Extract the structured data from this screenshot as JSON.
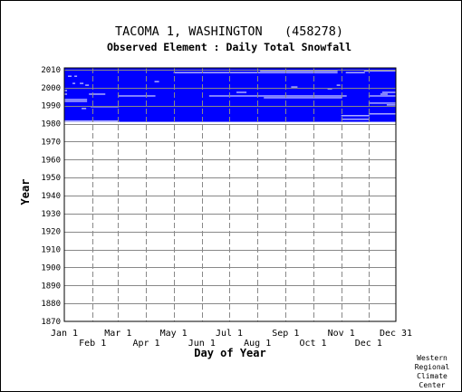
{
  "chart_data": {
    "type": "heatmap",
    "title": "TACOMA 1, WASHINGTON   (458278)",
    "subtitle": "Observed Element : Daily Total Snowfall",
    "xlabel": "Day of Year",
    "ylabel": "Year",
    "xlim": [
      1,
      365
    ],
    "ylim": [
      1870,
      2011
    ],
    "x_ticks_upper": [
      {
        "label": "Jan 1",
        "day": 1
      },
      {
        "label": "Mar 1",
        "day": 60
      },
      {
        "label": "May 1",
        "day": 121
      },
      {
        "label": "Jul 1",
        "day": 182
      },
      {
        "label": "Sep 1",
        "day": 244
      },
      {
        "label": "Nov 1",
        "day": 305
      },
      {
        "label": "Dec 31",
        "day": 365
      }
    ],
    "x_ticks_lower": [
      {
        "label": "Feb 1",
        "day": 32
      },
      {
        "label": "Apr 1",
        "day": 91
      },
      {
        "label": "Jun 1",
        "day": 152
      },
      {
        "label": "Aug 1",
        "day": 213
      },
      {
        "label": "Oct 1",
        "day": 274
      },
      {
        "label": "Dec 1",
        "day": 335
      }
    ],
    "y_ticks": [
      2010,
      2000,
      1990,
      1980,
      1970,
      1960,
      1950,
      1940,
      1930,
      1920,
      1910,
      1900,
      1890,
      1880,
      1870
    ],
    "grid": true,
    "data_color": "#0000ff",
    "missing_color": "#ffffff",
    "data_period": {
      "start_year": 1981,
      "end_year": 2010,
      "start_day": 1,
      "end_day": 365
    },
    "missing_segments": [
      {
        "year": 2009,
        "start_day": 216,
        "end_day": 300
      },
      {
        "year": 2009,
        "start_day": 330,
        "end_day": 365
      },
      {
        "year": 2008,
        "start_day": 121,
        "end_day": 300
      },
      {
        "year": 2008,
        "start_day": 310,
        "end_day": 330
      },
      {
        "year": 2006,
        "start_day": 5,
        "end_day": 8
      },
      {
        "year": 2006,
        "start_day": 12,
        "end_day": 14
      },
      {
        "year": 2003,
        "start_day": 100,
        "end_day": 104
      },
      {
        "year": 2002,
        "start_day": 10,
        "end_day": 12
      },
      {
        "year": 2002,
        "start_day": 18,
        "end_day": 21
      },
      {
        "year": 2001,
        "start_day": 24,
        "end_day": 27
      },
      {
        "year": 2001,
        "start_day": 300,
        "end_day": 303
      },
      {
        "year": 2000,
        "start_day": 250,
        "end_day": 256
      },
      {
        "year": 1999,
        "start_day": 290,
        "end_day": 294
      },
      {
        "year": 1998,
        "start_day": 1,
        "end_day": 3
      },
      {
        "year": 1997,
        "start_day": 190,
        "end_day": 200
      },
      {
        "year": 1997,
        "start_day": 350,
        "end_day": 365
      },
      {
        "year": 1996,
        "start_day": 1,
        "end_day": 3
      },
      {
        "year": 1996,
        "start_day": 28,
        "end_day": 45
      },
      {
        "year": 1996,
        "start_day": 348,
        "end_day": 355
      },
      {
        "year": 1995,
        "start_day": 60,
        "end_day": 100
      },
      {
        "year": 1995,
        "start_day": 160,
        "end_day": 310
      },
      {
        "year": 1995,
        "start_day": 335,
        "end_day": 365
      },
      {
        "year": 1994,
        "start_day": 220,
        "end_day": 305
      },
      {
        "year": 1993,
        "start_day": 1,
        "end_day": 25
      },
      {
        "year": 1992,
        "start_day": 1,
        "end_day": 25
      },
      {
        "year": 1991,
        "start_day": 335,
        "end_day": 365
      },
      {
        "year": 1990,
        "start_day": 355,
        "end_day": 365
      },
      {
        "year": 1989,
        "start_day": 30,
        "end_day": 60
      },
      {
        "year": 1988,
        "start_day": 20,
        "end_day": 24
      },
      {
        "year": 1985,
        "start_day": 335,
        "end_day": 365
      },
      {
        "year": 1984,
        "start_day": 305,
        "end_day": 335
      },
      {
        "year": 1982,
        "start_day": 305,
        "end_day": 335
      },
      {
        "year": 1981,
        "start_day": 1,
        "end_day": 60
      }
    ]
  },
  "credit": [
    "Western",
    "Regional",
    "Climate",
    "Center"
  ]
}
